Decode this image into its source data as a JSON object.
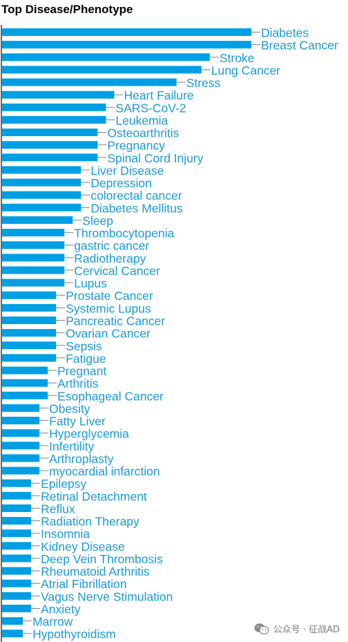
{
  "chart_data": {
    "type": "bar",
    "orientation": "horizontal",
    "title": "Top Disease/Phenotype",
    "bar_color": "#009fe3",
    "label_color": "#1a9ad7",
    "categories": [
      "Diabetes",
      "Breast Cancer",
      "Stroke",
      "Lung Cancer",
      "Stress",
      "Heart Failure",
      "SARS-CoV-2",
      "Leukemia",
      "Osteoarthritis",
      "Pregnancy",
      "Spinal Cord Injury",
      "Liver Disease",
      "Depression",
      "colorectal cancer",
      "Diabetes Mellitus",
      "Sleep",
      "Thrombocytopenia",
      "gastric cancer",
      "Radiotherapy",
      "Cervical Cancer",
      "Lupus",
      "Prostate Cancer",
      "Systemic Lupus",
      "Pancreatic Cancer",
      "Ovarian Cancer",
      "Sepsis",
      "Fatigue",
      "Pregnant",
      "Arthritis",
      "Esophageal Cancer",
      "Obesity",
      "Fatty Liver",
      "Hyperglycemia",
      "Infertility",
      "Arthroplasty",
      "myocardial infarction",
      "Epilepsy",
      "Retinal Detachment",
      "Reflux",
      "Radiation Therapy",
      "Insomnia",
      "Kidney Disease",
      "Deep Vein Thrombosis",
      "Rheumatoid Arthritis",
      "Atrial Fibrillation",
      "Vagus Nerve Stimulation",
      "Anxiety",
      "Marrow",
      "Hypothyroidism"
    ],
    "values": [
      30,
      30,
      25,
      24,
      21,
      13.5,
      12.5,
      12.5,
      11.5,
      11.5,
      11.5,
      9.5,
      9.5,
      9.5,
      9.5,
      8.5,
      7.5,
      7.5,
      7.5,
      7.5,
      7.5,
      6.5,
      6.5,
      6.5,
      6.5,
      6.5,
      6.5,
      5.5,
      5.5,
      5.5,
      4.5,
      4.5,
      4.5,
      4.5,
      4.5,
      4.5,
      3.5,
      3.5,
      3.5,
      3.5,
      3.5,
      3.5,
      3.5,
      3.5,
      3.5,
      3.5,
      3.5,
      2.5,
      2.5
    ],
    "xlim": [
      0,
      30
    ],
    "grid": false,
    "legend": "none"
  },
  "watermark": {
    "text": "公众号 · 征战AD"
  }
}
